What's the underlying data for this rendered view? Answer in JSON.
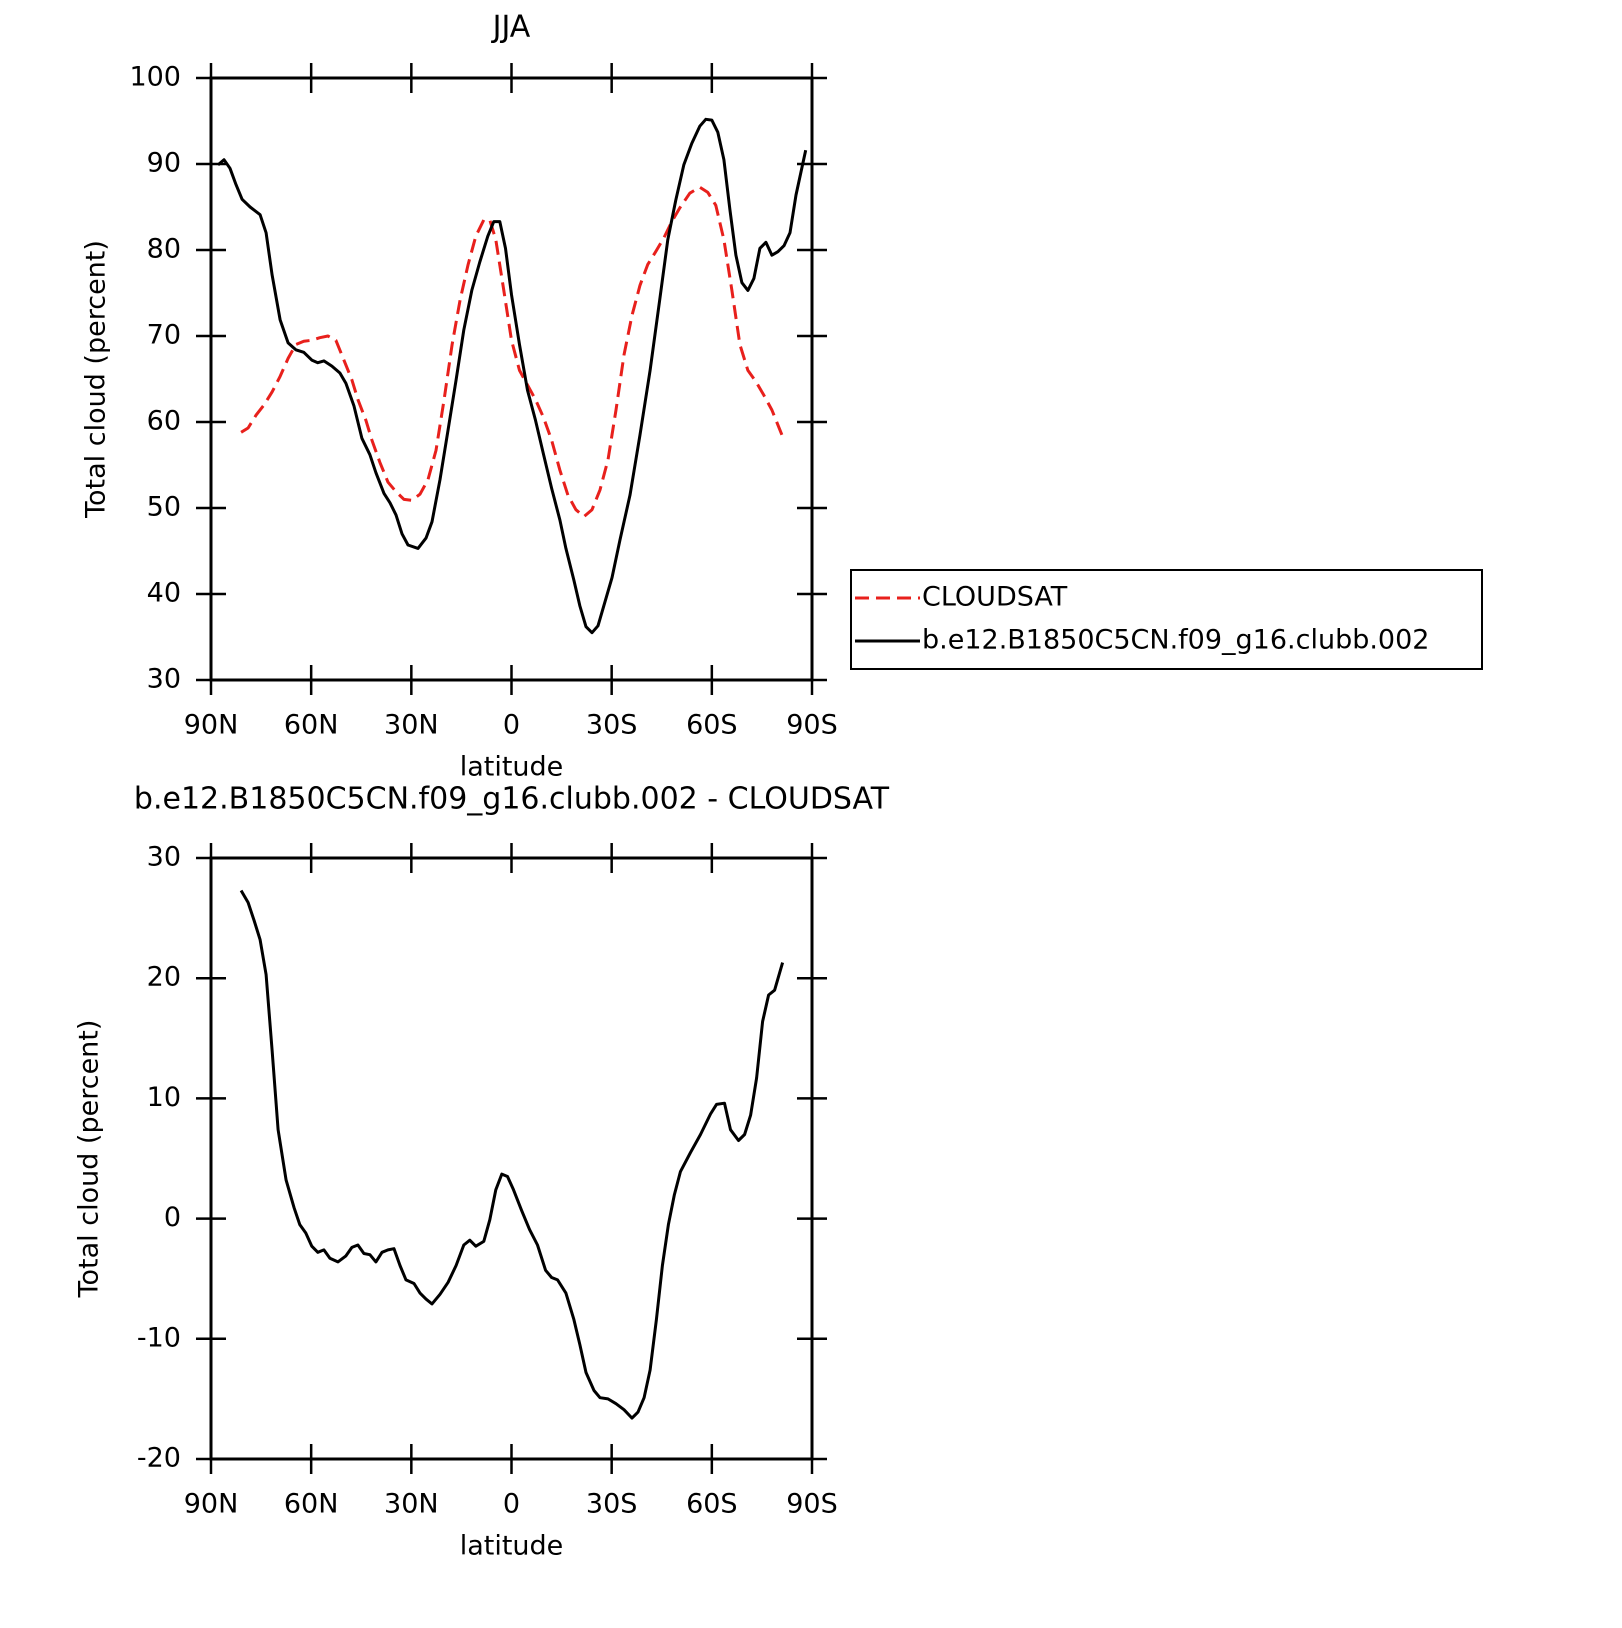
{
  "chart_data": [
    {
      "type": "line",
      "title": "JJA",
      "xlabel": "latitude",
      "ylabel": "Total cloud (percent)",
      "xlim": [
        90,
        -90
      ],
      "xticks": [
        {
          "value": 90,
          "label": "90N"
        },
        {
          "value": 60,
          "label": "60N"
        },
        {
          "value": 30,
          "label": "30N"
        },
        0,
        {
          "value": -30,
          "label": "30S"
        },
        {
          "value": -60,
          "label": "60S"
        },
        {
          "value": -90,
          "label": "90S"
        }
      ],
      "ylim": [
        30,
        100
      ],
      "yticks": [
        30,
        40,
        50,
        60,
        70,
        80,
        90,
        100
      ],
      "legend": "outside-right",
      "series": [
        {
          "name": "CLOUDSAT",
          "color": "#e8201c",
          "dash": true,
          "x": [
            81.0,
            78.9,
            76.5,
            74.1,
            71.7,
            69.3,
            66.9,
            64.6,
            62.2,
            59.8,
            57.4,
            55.0,
            52.6,
            50.2,
            47.8,
            46.0,
            43.6,
            41.8,
            39.4,
            37.0,
            34.6,
            32.2,
            29.8,
            27.4,
            25.0,
            22.6,
            20.2,
            17.8,
            15.4,
            13.0,
            10.7,
            8.3,
            6.5,
            4.7,
            2.3,
            0,
            -2.4,
            -4.8,
            -7.2,
            -9.6,
            -12.0,
            -14.5,
            -16.9,
            -19.3,
            -21.7,
            -24.1,
            -26.5,
            -28.9,
            -31.3,
            -33.7,
            -36.1,
            -38.5,
            -40.8,
            -43.2,
            -45.6,
            -48.0,
            -50.4,
            -53.4,
            -56.4,
            -58.8,
            -61.2,
            -63.6,
            -66.0,
            -68.4,
            -70.8,
            -73.2,
            -75.6,
            -78.0,
            -81.0
          ],
          "values": [
            58.8,
            59.3,
            60.8,
            62.0,
            63.5,
            65.3,
            67.4,
            69.0,
            69.4,
            69.5,
            69.8,
            70.0,
            69.5,
            67.2,
            64.9,
            62.6,
            60.2,
            57.9,
            55.3,
            53.0,
            51.9,
            51.0,
            50.9,
            51.6,
            53.3,
            56.7,
            62.6,
            69.0,
            74.2,
            78.3,
            81.6,
            83.5,
            83.5,
            81.2,
            75.3,
            69.5,
            66.0,
            64.3,
            62.6,
            60.5,
            57.9,
            54.4,
            51.5,
            49.8,
            49.0,
            49.8,
            52.1,
            55.6,
            61.4,
            67.8,
            72.4,
            75.9,
            78.3,
            79.8,
            81.4,
            83.3,
            84.9,
            86.6,
            87.3,
            86.7,
            85.2,
            81.2,
            75.3,
            69.0,
            66.0,
            64.7,
            63.1,
            61.4,
            58.5
          ]
        },
        {
          "name": "b.e12.B1850C5CN.f09_g16.clubb.002",
          "color": "#000000",
          "dash": false,
          "x": [
            87.9,
            86.1,
            84.3,
            82.5,
            80.7,
            78.3,
            75.3,
            73.5,
            71.7,
            69.3,
            66.9,
            64.6,
            62.2,
            59.8,
            58.0,
            56.2,
            53.8,
            51.4,
            49.6,
            47.2,
            44.8,
            42.4,
            40.6,
            38.2,
            36.4,
            34.6,
            32.8,
            31.0,
            28.0,
            25.6,
            23.8,
            21.4,
            19.0,
            16.6,
            14.3,
            11.9,
            9.5,
            7.1,
            5.3,
            3.5,
            1.8,
            0,
            -2.4,
            -4.8,
            -7.2,
            -9.6,
            -12.0,
            -14.5,
            -16.3,
            -18.7,
            -20.5,
            -22.3,
            -24.1,
            -25.9,
            -27.7,
            -30.1,
            -32.5,
            -35.5,
            -38.5,
            -41.5,
            -44.4,
            -46.8,
            -49.2,
            -51.6,
            -54.0,
            -56.4,
            -58.2,
            -60.0,
            -61.8,
            -63.6,
            -65.4,
            -67.2,
            -69.0,
            -70.8,
            -72.6,
            -74.4,
            -76.2,
            -78.0,
            -79.8,
            -81.6,
            -83.4,
            -85.2,
            -88.1
          ],
          "values": [
            89.9,
            90.5,
            89.5,
            87.6,
            85.9,
            85.0,
            84.1,
            82.0,
            77.1,
            71.9,
            69.2,
            68.4,
            68.1,
            67.2,
            66.9,
            67.1,
            66.5,
            65.7,
            64.5,
            61.9,
            58.1,
            56.2,
            54.1,
            51.7,
            50.6,
            49.2,
            47.0,
            45.7,
            45.3,
            46.5,
            48.4,
            53.3,
            59.1,
            64.9,
            70.7,
            75.3,
            78.6,
            81.6,
            83.3,
            83.3,
            80.2,
            74.8,
            69.0,
            63.7,
            60.2,
            56.2,
            52.3,
            48.6,
            45.3,
            41.6,
            38.6,
            36.2,
            35.5,
            36.3,
            38.7,
            41.9,
            46.3,
            51.5,
            58.5,
            66.0,
            74.2,
            81.2,
            85.8,
            89.9,
            92.4,
            94.4,
            95.2,
            95.1,
            93.7,
            90.5,
            84.7,
            79.4,
            76.2,
            75.3,
            76.7,
            80.2,
            80.9,
            79.4,
            79.8,
            80.5,
            82.0,
            86.4,
            91.6
          ]
        }
      ]
    },
    {
      "type": "line",
      "title": "b.e12.B1850C5CN.f09_g16.clubb.002 - CLOUDSAT",
      "xlabel": "latitude",
      "ylabel": "Total cloud (percent)",
      "xlim": [
        90,
        -90
      ],
      "xticks": [
        {
          "value": 90,
          "label": "90N"
        },
        {
          "value": 60,
          "label": "60N"
        },
        {
          "value": 30,
          "label": "30N"
        },
        0,
        {
          "value": -30,
          "label": "30S"
        },
        {
          "value": -60,
          "label": "60S"
        },
        {
          "value": -90,
          "label": "90S"
        }
      ],
      "ylim": [
        -20,
        30
      ],
      "yticks": [
        -20,
        -10,
        0,
        10,
        20,
        30
      ],
      "series": [
        {
          "color": "#000000",
          "dash": false,
          "x": [
            81.0,
            78.9,
            77.1,
            75.3,
            73.5,
            71.7,
            69.9,
            67.5,
            65.1,
            63.4,
            61.6,
            59.8,
            58.0,
            56.2,
            54.4,
            52.0,
            49.6,
            47.8,
            46.0,
            44.2,
            42.4,
            40.6,
            38.8,
            37.0,
            35.2,
            33.4,
            31.6,
            29.2,
            27.4,
            25.6,
            23.8,
            21.4,
            19.0,
            16.6,
            14.3,
            12.5,
            10.7,
            8.3,
            6.5,
            4.7,
            2.9,
            1.2,
            -0.6,
            -3.0,
            -5.4,
            -7.8,
            -10.2,
            -12.0,
            -13.8,
            -16.3,
            -18.7,
            -20.5,
            -22.3,
            -24.7,
            -26.5,
            -28.9,
            -31.3,
            -33.7,
            -36.1,
            -37.9,
            -39.7,
            -41.5,
            -43.4,
            -45.2,
            -47.0,
            -48.8,
            -50.6,
            -53.6,
            -56.6,
            -59.6,
            -61.4,
            -63.8,
            -65.6,
            -68.0,
            -69.8,
            -71.6,
            -73.4,
            -75.2,
            -77.0,
            -78.8,
            -81.2
          ],
          "values": [
            27.3,
            26.3,
            24.8,
            23.2,
            20.3,
            14.0,
            7.4,
            3.2,
            0.9,
            -0.5,
            -1.2,
            -2.3,
            -2.8,
            -2.6,
            -3.3,
            -3.6,
            -3.1,
            -2.4,
            -2.2,
            -2.9,
            -3.0,
            -3.6,
            -2.8,
            -2.6,
            -2.5,
            -3.9,
            -5.1,
            -5.4,
            -6.2,
            -6.7,
            -7.1,
            -6.3,
            -5.3,
            -3.9,
            -2.2,
            -1.8,
            -2.3,
            -1.9,
            -0.1,
            2.4,
            3.7,
            3.5,
            2.4,
            0.7,
            -0.9,
            -2.2,
            -4.3,
            -4.9,
            -5.1,
            -6.2,
            -8.4,
            -10.5,
            -12.8,
            -14.3,
            -14.9,
            -15.0,
            -15.4,
            -15.9,
            -16.6,
            -16.1,
            -14.9,
            -12.6,
            -8.4,
            -3.9,
            -0.5,
            2.0,
            3.9,
            5.5,
            7.0,
            8.7,
            9.5,
            9.6,
            7.4,
            6.5,
            7.0,
            8.6,
            11.7,
            16.4,
            18.6,
            19.0,
            21.3
          ]
        }
      ]
    }
  ]
}
